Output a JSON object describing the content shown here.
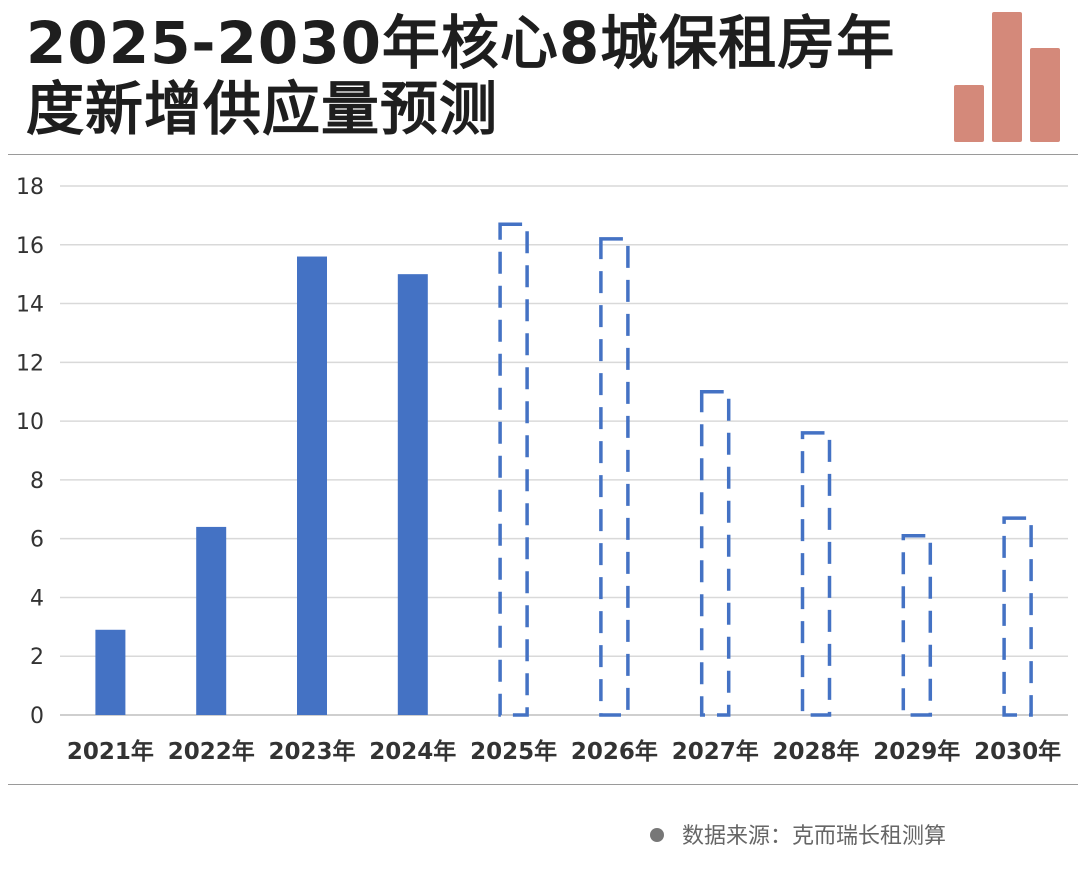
{
  "title": {
    "line1": "2025-2030年核心8城保租房年",
    "line2": "度新增供应量预测"
  },
  "colors": {
    "actual_bar": "#4472C4",
    "forecast_outline": "#4472C4",
    "logo": "#D4897A",
    "grid": "#D9D9D9",
    "rule": "#9A9A9A"
  },
  "source": {
    "icon": "bullet-dot-icon",
    "text": "数据来源：克而瑞长租测算"
  },
  "chart_data": {
    "type": "bar",
    "title": "2025-2030年核心8城保租房年度新增供应量预测",
    "xlabel": "",
    "ylabel": "",
    "ylim": [
      0,
      18
    ],
    "yticks": [
      0,
      2,
      4,
      6,
      8,
      10,
      12,
      14,
      16,
      18
    ],
    "grid": true,
    "legend": "none",
    "categories": [
      "2021年",
      "2022年",
      "2023年",
      "2024年",
      "2025年",
      "2026年",
      "2027年",
      "2028年",
      "2029年",
      "2030年"
    ],
    "values": [
      2.9,
      6.4,
      15.6,
      15.0,
      16.7,
      16.2,
      11.0,
      9.6,
      6.1,
      6.7
    ],
    "forecast": [
      false,
      false,
      false,
      false,
      true,
      true,
      true,
      true,
      true,
      true
    ]
  }
}
